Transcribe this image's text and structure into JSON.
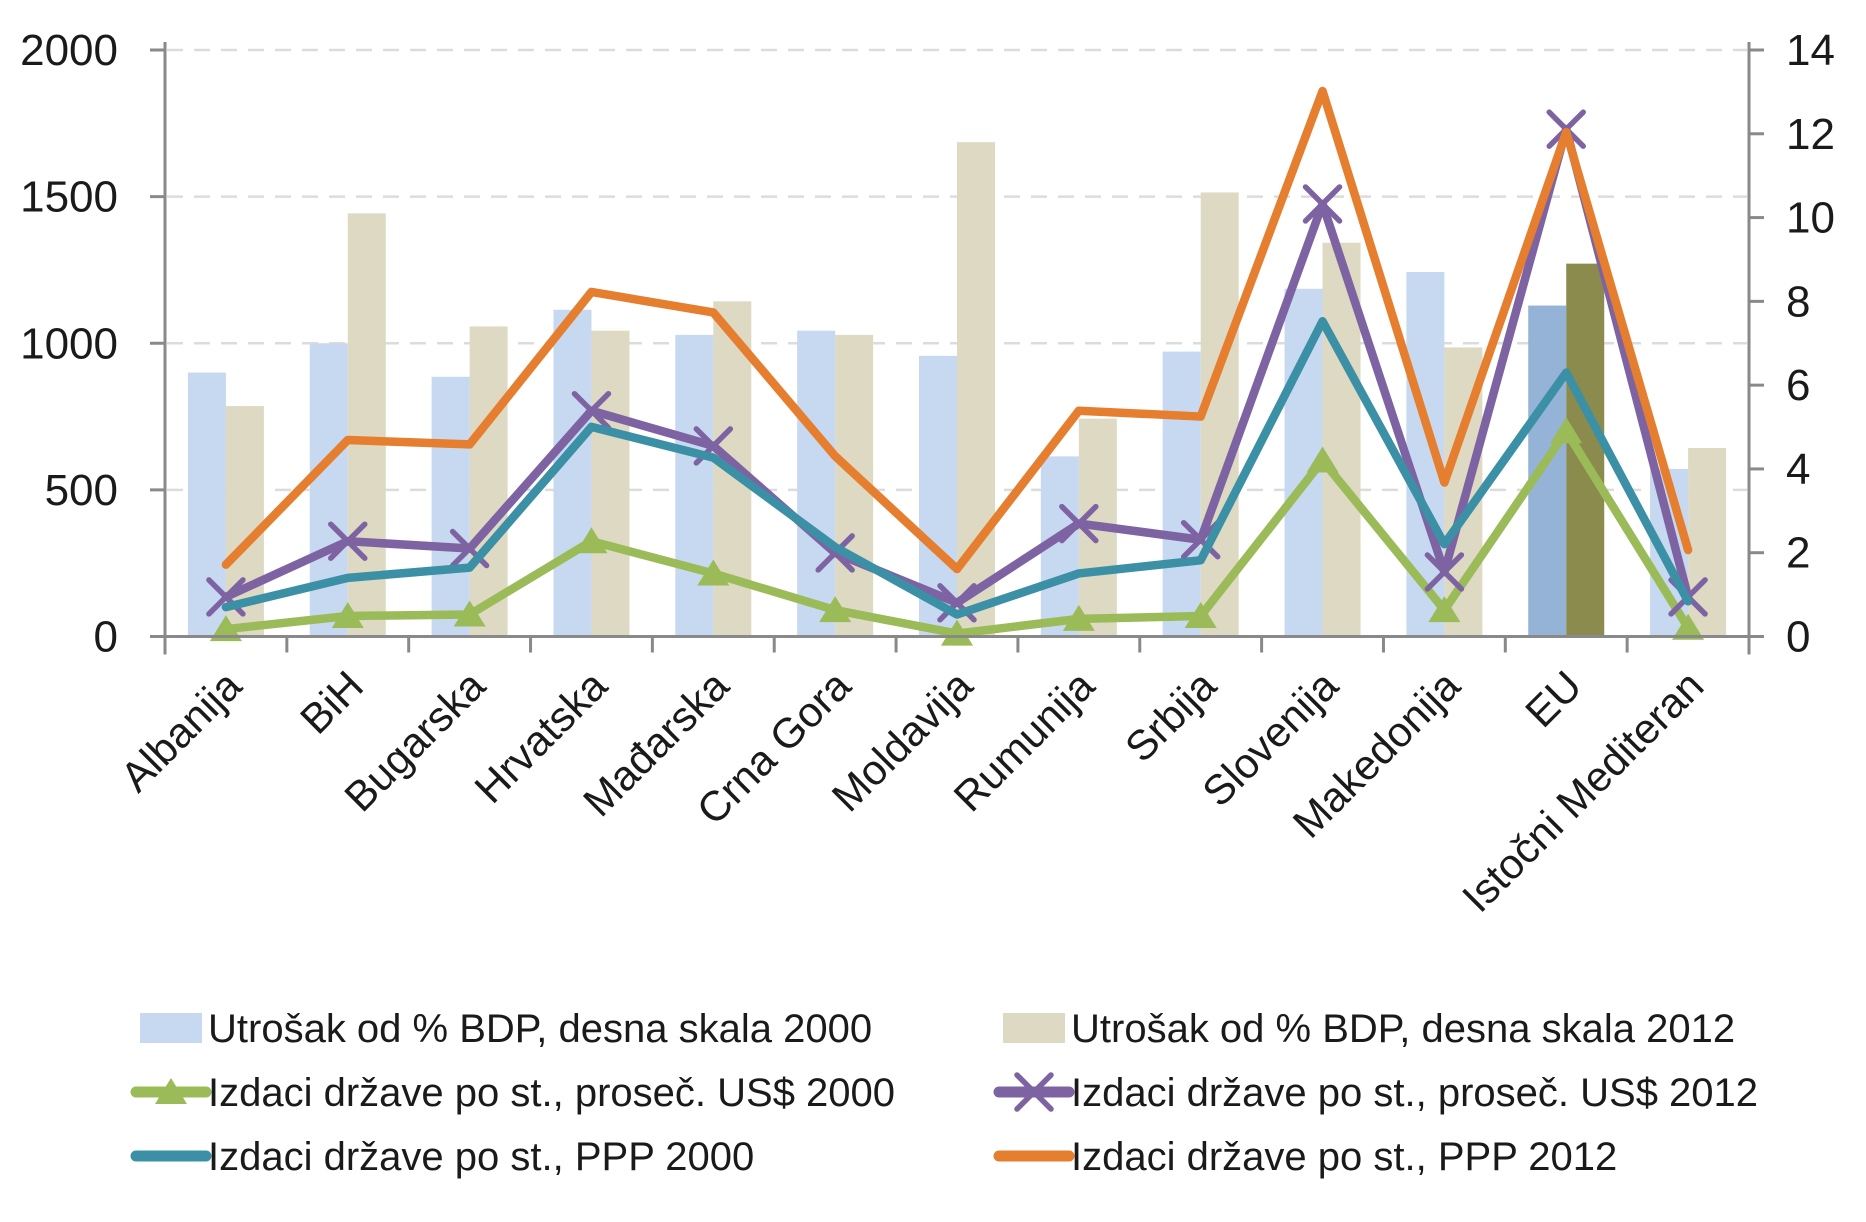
{
  "chart_data": {
    "type": "bar",
    "subtype": "combo-bar-line-dual-axis",
    "title": "",
    "categories": [
      "Albanija",
      "BiH",
      "Bugarska",
      "Hrvatska",
      "Mađarska",
      "Crna Gora",
      "Moldavija",
      "Rumunija",
      "Srbija",
      "Slovenija",
      "Makedonija",
      "EU",
      "Istočni Mediteran"
    ],
    "left_axis": {
      "min": 0,
      "max": 2000,
      "step": 500,
      "ticks": [
        "0",
        "500",
        "1000",
        "1500",
        "2000"
      ],
      "tick_values": [
        0,
        500,
        1000,
        1500,
        2000
      ]
    },
    "right_axis": {
      "min": 0,
      "max": 14,
      "step": 2,
      "ticks": [
        "0",
        "2",
        "4",
        "6",
        "8",
        "10",
        "12",
        "14"
      ],
      "tick_values": [
        0,
        2,
        4,
        6,
        8,
        10,
        12,
        14
      ]
    },
    "grid": "dashed horizontal at left-axis ticks",
    "highlight_category": "EU",
    "bar_series": [
      {
        "name": "Utrošak od % BDP, desna skala 2000",
        "axis": "right",
        "color_key": "bar2000",
        "highlight_color_key": "bar2000_hl",
        "values": [
          6.3,
          7.0,
          6.2,
          7.8,
          7.2,
          7.3,
          6.7,
          4.3,
          6.8,
          8.3,
          8.7,
          7.9,
          4.0
        ]
      },
      {
        "name": "Utrošak od % BDP, desna skala 2012",
        "axis": "right",
        "color_key": "bar2012",
        "highlight_color_key": "bar2012_hl",
        "values": [
          5.5,
          10.1,
          7.4,
          7.3,
          8.0,
          7.2,
          11.8,
          5.2,
          10.6,
          9.4,
          6.9,
          8.9,
          4.5
        ]
      }
    ],
    "line_series": [
      {
        "name": "Izdaci države po st., proseč. US$ 2000",
        "axis": "left",
        "color_key": "green",
        "marker": "triangle",
        "values": [
          25,
          70,
          75,
          325,
          215,
          90,
          10,
          60,
          70,
          600,
          90,
          700,
          30
        ]
      },
      {
        "name": "Izdaci države po st., proseč. US$ 2012",
        "axis": "left",
        "color_key": "purple",
        "marker": "x",
        "values": [
          135,
          325,
          300,
          770,
          650,
          285,
          115,
          385,
          330,
          1475,
          220,
          1730,
          135
        ]
      },
      {
        "name": "Izdaci države po st., PPP 2000",
        "axis": "left",
        "color_key": "teal",
        "marker": "none",
        "values": [
          100,
          200,
          235,
          715,
          610,
          305,
          75,
          215,
          260,
          1075,
          315,
          900,
          120
        ]
      },
      {
        "name": "Izdaci države po st., PPP 2012",
        "axis": "left",
        "color_key": "orange",
        "marker": "none",
        "values": [
          245,
          670,
          655,
          1175,
          1105,
          615,
          230,
          770,
          750,
          1860,
          525,
          1720,
          295
        ]
      }
    ],
    "legend": {
      "position": "bottom, two columns",
      "columns": [
        [
          {
            "swatch": "bar",
            "color_key": "bar2000",
            "label": "Utrošak od % BDP, desna skala 2000"
          },
          {
            "swatch": "line",
            "marker": "triangle",
            "color_key": "green",
            "label": "Izdaci države po st., proseč. US$ 2000"
          },
          {
            "swatch": "line",
            "marker": "none",
            "color_key": "teal",
            "label": "Izdaci države po st., PPP 2000"
          }
        ],
        [
          {
            "swatch": "bar",
            "color_key": "bar2012",
            "label": "Utrošak od % BDP, desna skala 2012"
          },
          {
            "swatch": "line",
            "marker": "x",
            "color_key": "purple",
            "label": "Izdaci države po st., proseč. US$ 2012"
          },
          {
            "swatch": "line",
            "marker": "none",
            "color_key": "orange",
            "label": "Izdaci države po st., PPP 2012"
          }
        ]
      ]
    },
    "colors": {
      "bar2000": "#c7d9f0",
      "bar2012": "#ddd9c3",
      "bar2000_hl": "#95b3d7",
      "bar2012_hl": "#8a8b4c",
      "green": "#9bbb59",
      "purple": "#7e63a3",
      "teal": "#3b90a6",
      "orange": "#e57e2e",
      "grid": "#dcdcdc",
      "axis": "#898989",
      "text": "#1a1a1a"
    }
  }
}
